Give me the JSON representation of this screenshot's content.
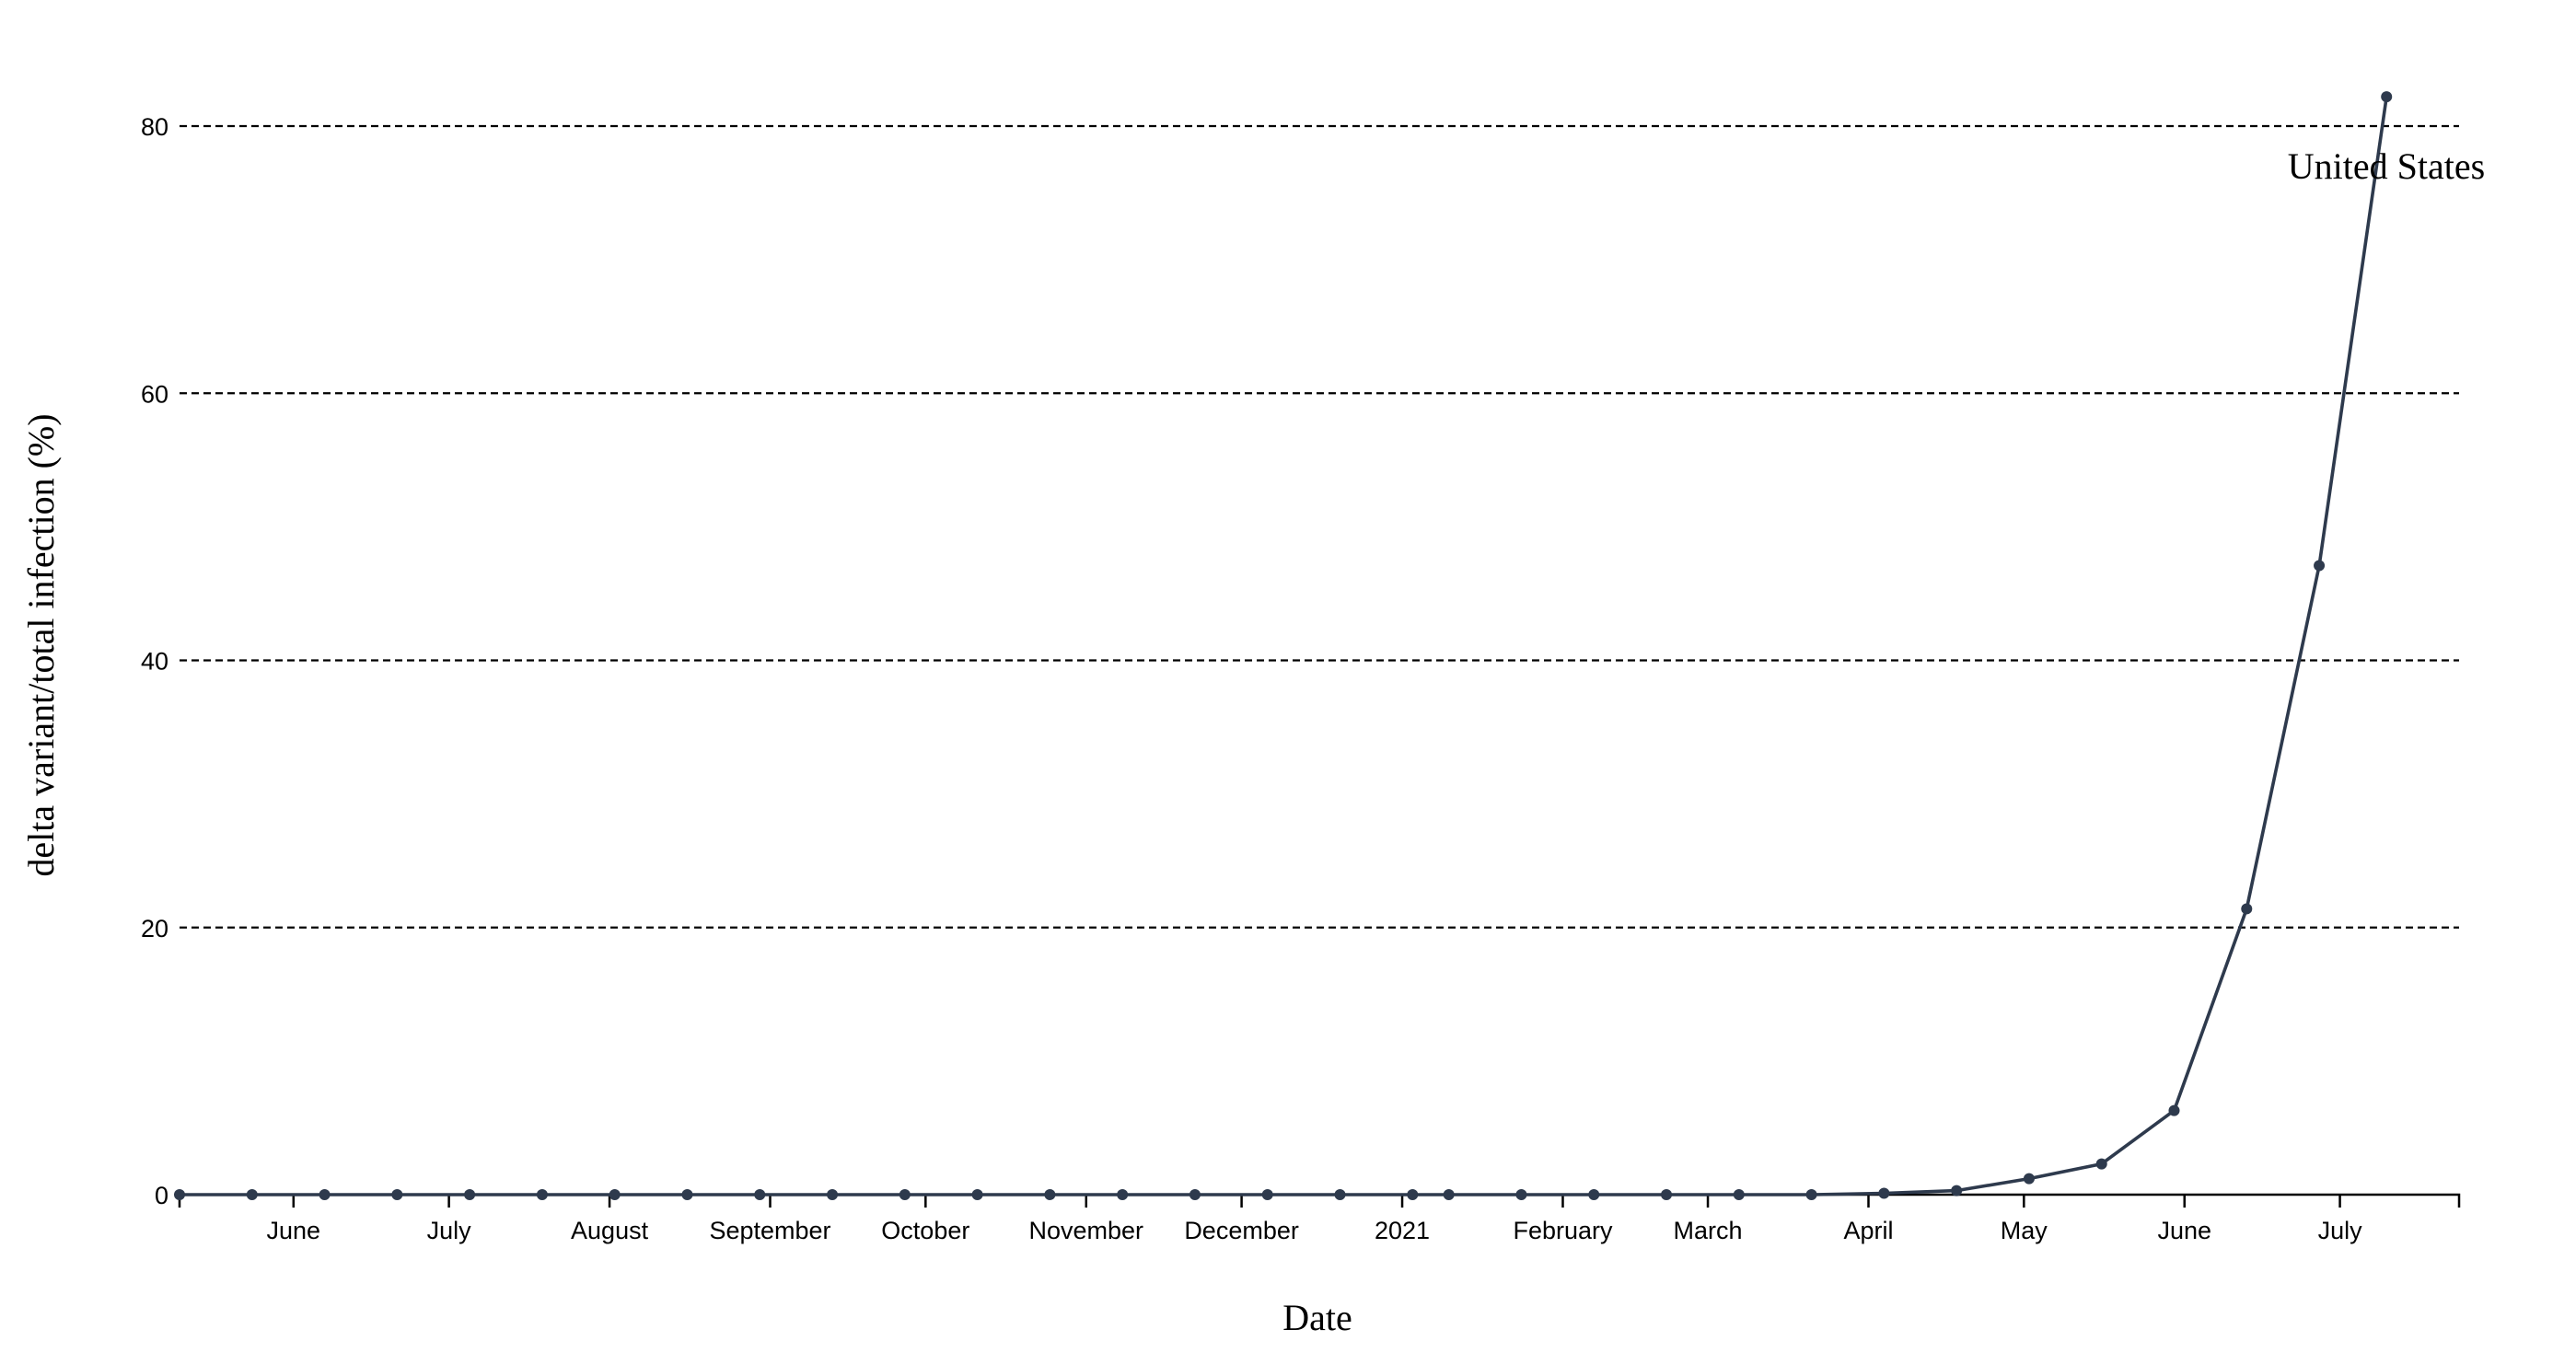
{
  "chart_data": {
    "type": "line",
    "title": "",
    "xlabel": "Date",
    "ylabel": "delta variant/total infection (%)",
    "ylim": [
      0,
      82
    ],
    "xlim": [
      "2020-05-10",
      "2021-07-24"
    ],
    "yticks": [
      0,
      20,
      40,
      60,
      80
    ],
    "xticks": [
      {
        "label": "June",
        "date": "2020-06-01"
      },
      {
        "label": "July",
        "date": "2020-07-01"
      },
      {
        "label": "August",
        "date": "2020-08-01"
      },
      {
        "label": "September",
        "date": "2020-09-01"
      },
      {
        "label": "October",
        "date": "2020-10-01"
      },
      {
        "label": "November",
        "date": "2020-11-01"
      },
      {
        "label": "December",
        "date": "2020-12-01"
      },
      {
        "label": "2021",
        "date": "2021-01-01"
      },
      {
        "label": "February",
        "date": "2021-02-01"
      },
      {
        "label": "March",
        "date": "2021-03-01"
      },
      {
        "label": "April",
        "date": "2021-04-01"
      },
      {
        "label": "May",
        "date": "2021-05-01"
      },
      {
        "label": "June",
        "date": "2021-06-01"
      },
      {
        "label": "July",
        "date": "2021-07-01"
      }
    ],
    "grid": "horizontal dashed",
    "line_color": "#2e3a4d",
    "series": [
      {
        "name": "United States",
        "x": [
          "2020-05-10",
          "2020-05-24",
          "2020-06-07",
          "2020-06-21",
          "2020-07-05",
          "2020-07-19",
          "2020-08-02",
          "2020-08-16",
          "2020-08-30",
          "2020-09-13",
          "2020-09-27",
          "2020-10-11",
          "2020-10-25",
          "2020-11-08",
          "2020-11-22",
          "2020-12-06",
          "2020-12-20",
          "2021-01-03",
          "2021-01-10",
          "2021-01-24",
          "2021-02-07",
          "2021-02-21",
          "2021-03-07",
          "2021-03-21",
          "2021-04-04",
          "2021-04-18",
          "2021-05-02",
          "2021-05-16",
          "2021-05-30",
          "2021-06-13",
          "2021-06-27",
          "2021-07-10"
        ],
        "values": [
          0,
          0,
          0,
          0,
          0,
          0,
          0,
          0,
          0,
          0,
          0,
          0,
          0,
          0,
          0,
          0,
          0,
          0,
          0,
          0,
          0,
          0,
          0,
          0,
          0.1,
          0.3,
          1.2,
          2.3,
          6.3,
          21.4,
          47.1,
          82.2
        ]
      }
    ]
  }
}
